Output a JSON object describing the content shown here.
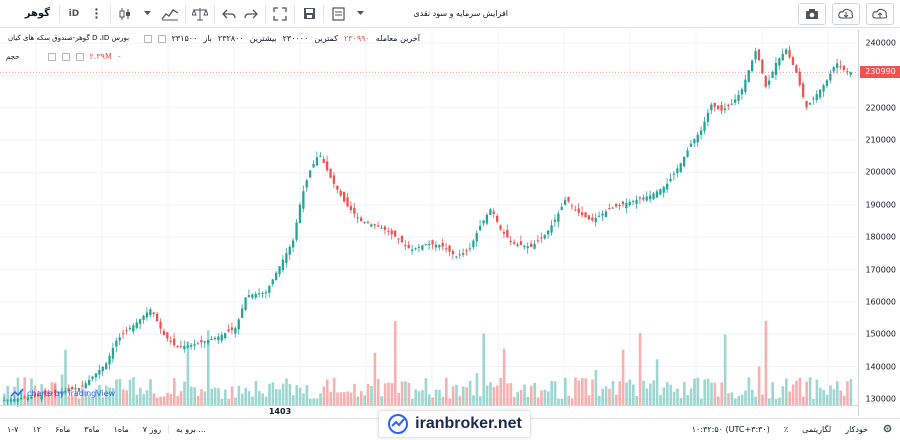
{
  "toolbar": {
    "symbol": "گوهر",
    "interval": "iD",
    "study_label": "افزایش سرمایه و سود نقدی"
  },
  "legend": {
    "title": "بورس D ،ID گوهر-صندوق سکه های کیان",
    "open_label": "باز",
    "open_value": "۲۳۱۵۰۰",
    "high_label": "بیشترین",
    "high_value": "۲۳۲۸۰۰",
    "low_label": "کمترین",
    "low_value": "۲۳۰۰۰۰",
    "last_label": "آخرین معامله",
    "last_value": "۲۳۰۹۹۰",
    "volume_label": "حجم",
    "volume_value": "۲.۳۹M"
  },
  "price_axis": {
    "ticks": [
      "240000",
      "230000",
      "220000",
      "210000",
      "200000",
      "190000",
      "180000",
      "170000",
      "160000",
      "150000",
      "140000",
      "130000"
    ],
    "last_price": "230990"
  },
  "time_axis": {
    "label_1": "1403"
  },
  "bottom_bar": {
    "ranges": [
      "۷ روز",
      "۱ماه",
      "۳ماه",
      "۶ماه",
      "۱۲",
      "۱-۷"
    ],
    "goto_label": "برو به ...",
    "clock": "۱۰:۳۲:۵۰ (UTC+۳:۳۰)",
    "pct_label": "٪",
    "log_label": "لگاریتمی",
    "auto_label": "خودکار"
  },
  "watermark": "charts by TradingView",
  "brand": "iranbroker.net",
  "chart_data": {
    "type": "candlestick",
    "ylim": [
      128000,
      245000
    ],
    "up_color": "#26a69a",
    "down_color": "#ef5350",
    "grid": true
  }
}
